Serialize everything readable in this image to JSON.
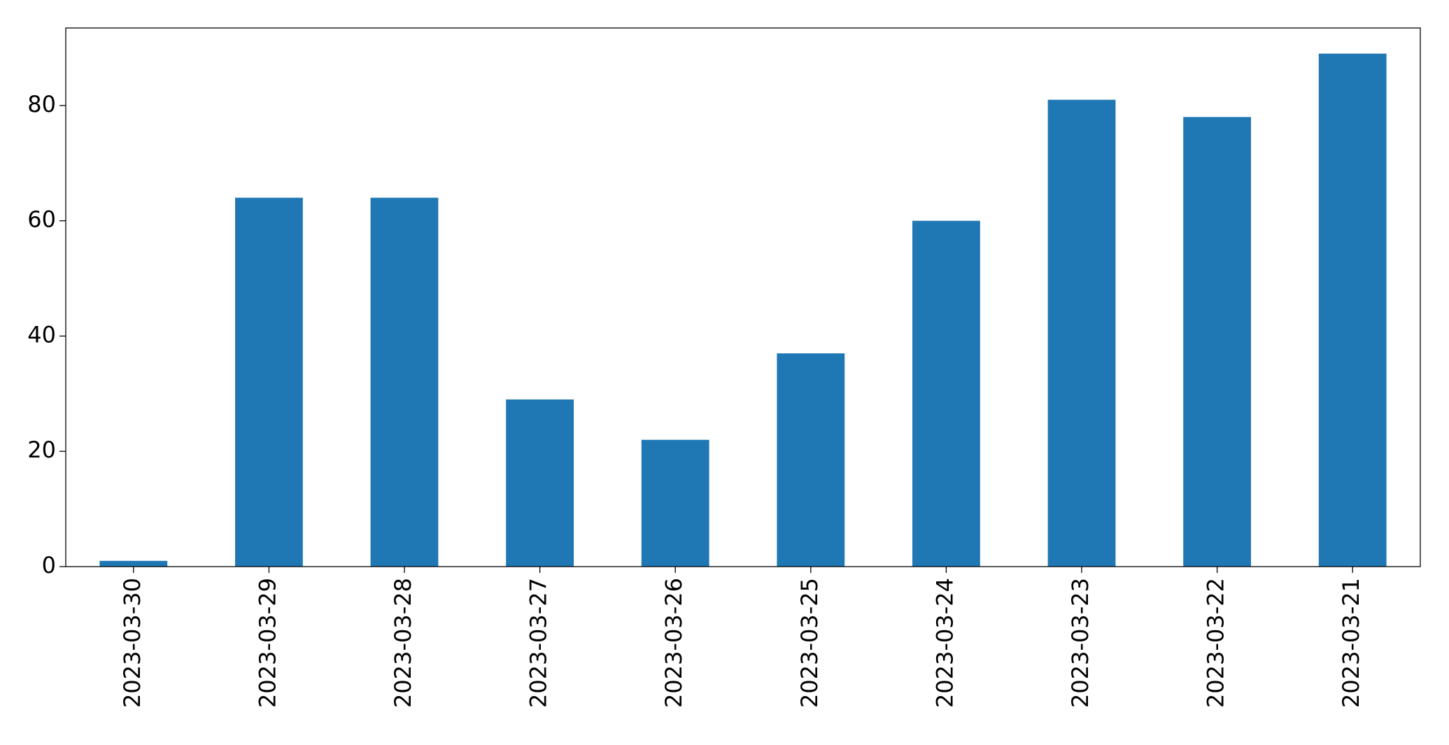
{
  "chart_data": {
    "type": "bar",
    "categories": [
      "2023-03-30",
      "2023-03-29",
      "2023-03-28",
      "2023-03-27",
      "2023-03-26",
      "2023-03-25",
      "2023-03-24",
      "2023-03-23",
      "2023-03-22",
      "2023-03-21"
    ],
    "values": [
      1,
      64,
      64,
      29,
      22,
      37,
      60,
      81,
      78,
      89
    ],
    "color": "#1f77b4",
    "ylim": [
      0,
      93.45
    ],
    "yticks": [
      0,
      20,
      40,
      60,
      80
    ],
    "grid": false
  }
}
